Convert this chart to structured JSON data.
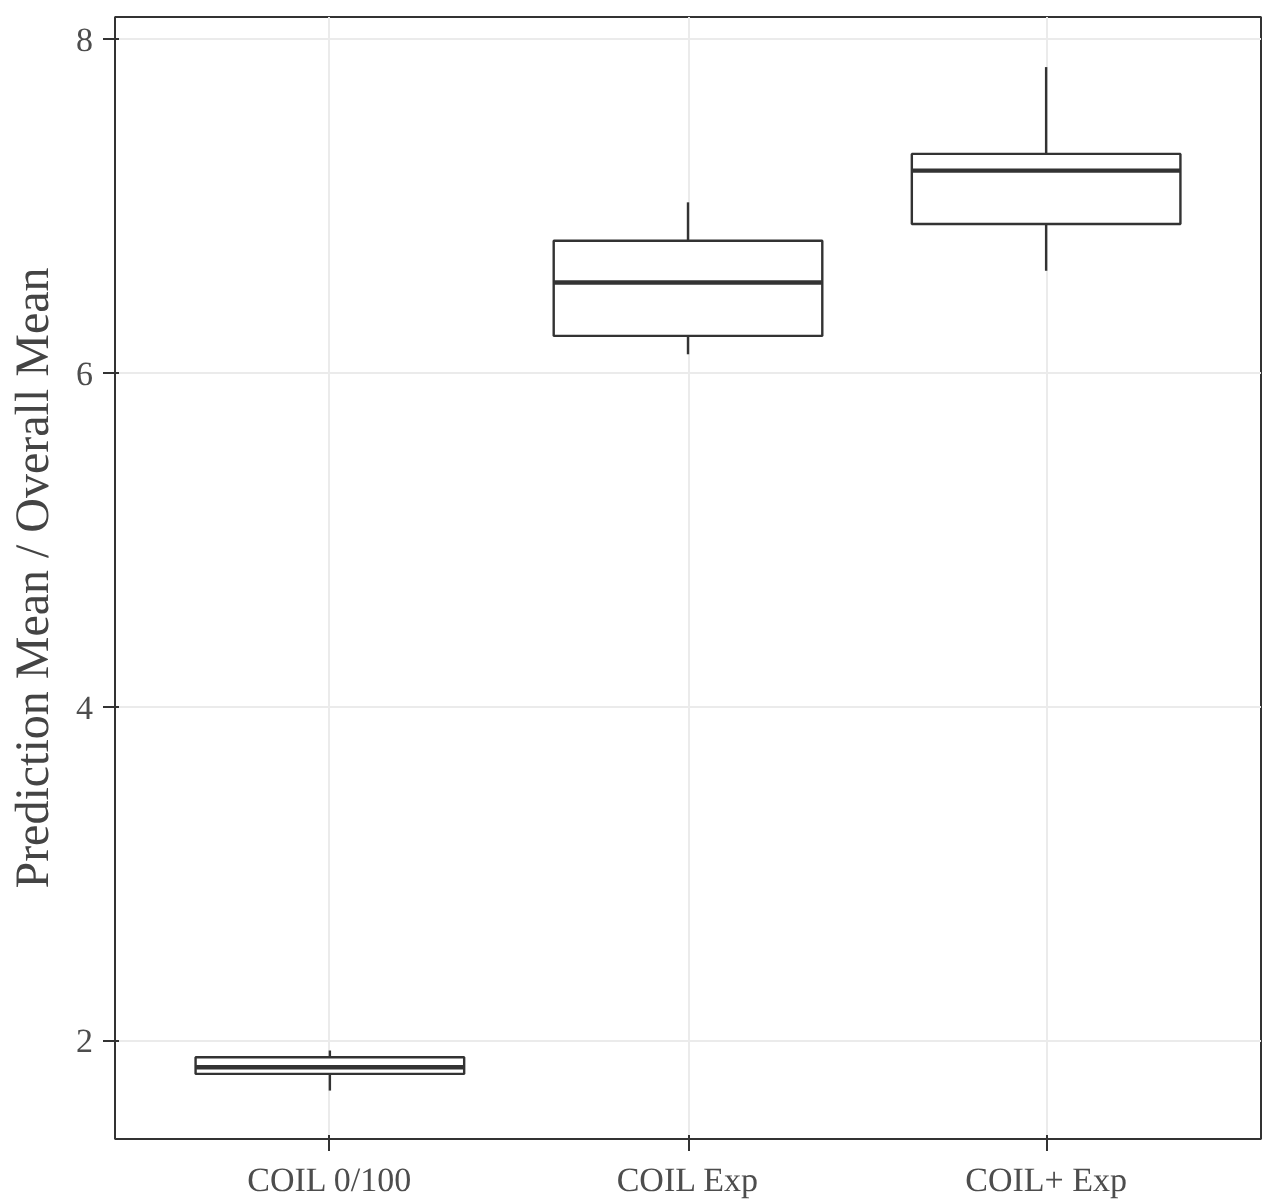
{
  "chart_data": {
    "type": "box",
    "ylabel": "Prediction Mean / Overall Mean",
    "categories": [
      "COIL 0/100",
      "COIL Exp",
      "COIL+ Exp"
    ],
    "boxes": [
      {
        "low": 1.7,
        "q1": 1.8,
        "median": 1.84,
        "q3": 1.9,
        "high": 1.94
      },
      {
        "low": 6.11,
        "q1": 6.22,
        "median": 6.54,
        "q3": 6.79,
        "high": 7.02
      },
      {
        "low": 6.61,
        "q1": 6.89,
        "median": 7.21,
        "q3": 7.31,
        "high": 7.83
      }
    ],
    "ylim": [
      1.41,
      8.13
    ],
    "yticks": [
      2,
      4,
      6,
      8
    ],
    "grid": true,
    "color": "#333333"
  }
}
